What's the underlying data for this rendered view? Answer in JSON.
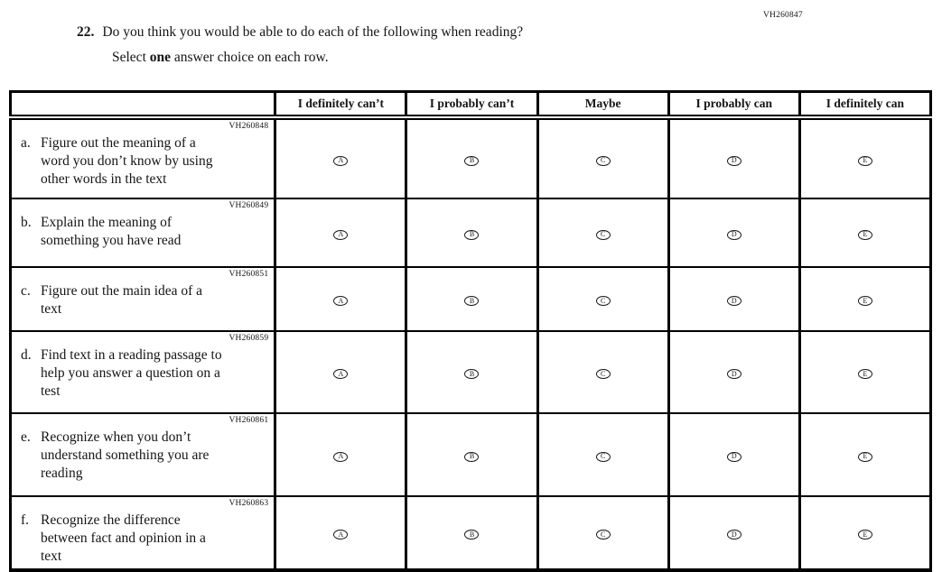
{
  "page": {
    "code": "VH260847",
    "question_number": "22.",
    "question_text": "Do you think you would be able to do each of the following when reading?",
    "instruction_prefix": "Select ",
    "instruction_bold": "one",
    "instruction_suffix": " answer choice on each row."
  },
  "table": {
    "columns": [
      "I definitely can’t",
      "I probably can’t",
      "Maybe",
      "I probably can",
      "I definitely can"
    ],
    "options": [
      "A",
      "B",
      "C",
      "D",
      "E"
    ],
    "rows": [
      {
        "code": "VH260848",
        "label": "a.",
        "text": "Figure out the meaning of a\nword you don’t know by using\nother words in the text"
      },
      {
        "code": "VH260849",
        "label": "b.",
        "text": "Explain the meaning of\nsomething you have read"
      },
      {
        "code": "VH260851",
        "label": "c.",
        "text": "Figure out the main idea of a\ntext"
      },
      {
        "code": "VH260859",
        "label": "d.",
        "text": "Find text in a reading passage to\nhelp you answer a question on a\ntest"
      },
      {
        "code": "VH260861",
        "label": "e.",
        "text": "Recognize when you don’t\nunderstand something you are\nreading"
      },
      {
        "code": "VH260863",
        "label": "f.",
        "text": "Recognize the difference\nbetween fact and opinion in a\ntext"
      }
    ]
  }
}
